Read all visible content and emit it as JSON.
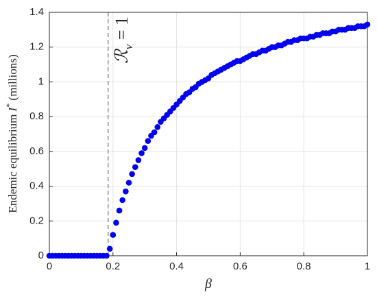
{
  "chart_data": {
    "type": "scatter",
    "xlabel": "β",
    "ylabel": [
      "Endemic equilibrium ",
      "I",
      "*",
      " (millions)"
    ],
    "color": "#0000ee",
    "xlim": [
      0,
      1
    ],
    "xticks": [
      0,
      0.2,
      0.4,
      0.6,
      0.8,
      1
    ],
    "ylim": [
      0,
      1.4
    ],
    "yticks": [
      0,
      0.2,
      0.4,
      0.6,
      0.8,
      1,
      1.2,
      1.4
    ],
    "grid": true,
    "reference_line": {
      "x": 0.185,
      "label": [
        "ℛ",
        "v",
        " = 1"
      ]
    },
    "x": [
      0,
      0.01,
      0.02,
      0.03,
      0.04,
      0.05,
      0.06,
      0.07,
      0.08,
      0.09,
      0.1,
      0.11,
      0.12,
      0.13,
      0.14,
      0.15,
      0.16,
      0.17,
      0.18,
      0.19,
      0.2,
      0.21,
      0.22,
      0.23,
      0.24,
      0.25,
      0.26,
      0.27,
      0.28,
      0.29,
      0.3,
      0.31,
      0.32,
      0.33,
      0.34,
      0.35,
      0.36,
      0.37,
      0.38,
      0.39,
      0.4,
      0.41,
      0.42,
      0.43,
      0.44,
      0.45,
      0.46,
      0.47,
      0.48,
      0.49,
      0.5,
      0.51,
      0.52,
      0.53,
      0.54,
      0.55,
      0.56,
      0.57,
      0.58,
      0.59,
      0.6,
      0.61,
      0.62,
      0.63,
      0.64,
      0.65,
      0.66,
      0.67,
      0.68,
      0.69,
      0.7,
      0.71,
      0.72,
      0.73,
      0.74,
      0.75,
      0.76,
      0.77,
      0.78,
      0.79,
      0.8,
      0.81,
      0.82,
      0.83,
      0.84,
      0.85,
      0.86,
      0.87,
      0.88,
      0.89,
      0.9,
      0.91,
      0.92,
      0.93,
      0.94,
      0.95,
      0.96,
      0.97,
      0.98,
      0.99,
      1
    ],
    "values": [
      0,
      0,
      0,
      0,
      0,
      0,
      0,
      0,
      0,
      0,
      0,
      0,
      0,
      0,
      0,
      0,
      0,
      0,
      0,
      0.04,
      0.12,
      0.19,
      0.26,
      0.32,
      0.37,
      0.42,
      0.47,
      0.51,
      0.55,
      0.59,
      0.62,
      0.66,
      0.69,
      0.71,
      0.74,
      0.77,
      0.79,
      0.81,
      0.83,
      0.85,
      0.87,
      0.89,
      0.91,
      0.93,
      0.94,
      0.96,
      0.97,
      0.99,
      1.0,
      1.01,
      1.02,
      1.04,
      1.05,
      1.06,
      1.07,
      1.08,
      1.09,
      1.1,
      1.11,
      1.12,
      1.12,
      1.13,
      1.14,
      1.15,
      1.16,
      1.16,
      1.17,
      1.18,
      1.18,
      1.19,
      1.2,
      1.2,
      1.21,
      1.21,
      1.22,
      1.23,
      1.23,
      1.24,
      1.24,
      1.25,
      1.25,
      1.25,
      1.26,
      1.26,
      1.27,
      1.27,
      1.28,
      1.28,
      1.28,
      1.29,
      1.29,
      1.3,
      1.3,
      1.3,
      1.31,
      1.31,
      1.31,
      1.32,
      1.32,
      1.32,
      1.33
    ]
  }
}
